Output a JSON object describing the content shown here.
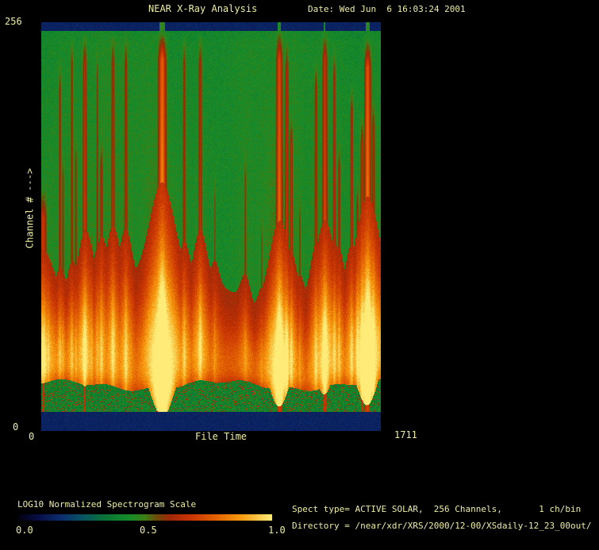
{
  "chart_data": {
    "type": "heatmap",
    "title": "NEAR X-Ray Analysis",
    "subtitle": "Date: Wed Jun  6 16:03:24 2001",
    "xlabel": "File Time",
    "ylabel": "Channel # --->",
    "x_axis": {
      "label": "File Time",
      "min_label": "0",
      "max_label": "1711",
      "range": [
        0,
        1711
      ]
    },
    "y_axis": {
      "label": "Channel # --->",
      "min_label": "0",
      "max_label": "256",
      "range": [
        0,
        256
      ]
    },
    "colorbar": {
      "label": "LOG10 Normalized Spectrogram Scale",
      "ticks": [
        "0.0",
        "0.5",
        "1.0"
      ],
      "range": [
        0.0,
        1.0
      ]
    },
    "info_lines": [
      "Spect type= ACTIVE SOLAR,  256 Channels,       1 ch/bin",
      "Directory = /near/xdr/XRS/2000/12-00/XSdaily-12_23_00out/"
    ],
    "palette_stops": [
      [
        0.0,
        2,
        2,
        12
      ],
      [
        0.08,
        8,
        14,
        70
      ],
      [
        0.17,
        12,
        45,
        110
      ],
      [
        0.26,
        8,
        85,
        95
      ],
      [
        0.34,
        10,
        115,
        55
      ],
      [
        0.44,
        22,
        140,
        40
      ],
      [
        0.5,
        60,
        128,
        22
      ],
      [
        0.55,
        112,
        72,
        10
      ],
      [
        0.6,
        160,
        40,
        8
      ],
      [
        0.68,
        200,
        52,
        2
      ],
      [
        0.78,
        226,
        98,
        0
      ],
      [
        0.88,
        248,
        156,
        16
      ],
      [
        1.0,
        255,
        236,
        120
      ]
    ],
    "spectrogram": {
      "background_level": 0.44,
      "band_level": 0.14,
      "top_band_frac": 0.0195,
      "bottom_band_start_frac": 0.9515,
      "green_band_start_frac": 0.887,
      "red_top_base_frac": 0.66,
      "flare_streaks": [
        {
          "x": 0.004,
          "i": 0.55,
          "w": 3.0,
          "top": 0.4
        },
        {
          "x": 0.02,
          "i": 0.3,
          "w": 1.2,
          "top": 0.55
        },
        {
          "x": 0.054,
          "i": 0.38,
          "w": 1.3,
          "top": 0.08
        },
        {
          "x": 0.063,
          "i": 0.3,
          "w": 1.0,
          "top": 0.3
        },
        {
          "x": 0.089,
          "i": 0.38,
          "w": 1.3,
          "top": 0.02
        },
        {
          "x": 0.101,
          "i": 0.32,
          "w": 1.0,
          "top": 0.26
        },
        {
          "x": 0.127,
          "i": 0.58,
          "w": 1.8,
          "top": 0.02
        },
        {
          "x": 0.148,
          "i": 0.28,
          "w": 1.0,
          "top": 0.5
        },
        {
          "x": 0.164,
          "i": 0.33,
          "w": 1.1,
          "top": 0.05
        },
        {
          "x": 0.176,
          "i": 0.42,
          "w": 1.4,
          "top": 0.28
        },
        {
          "x": 0.21,
          "i": 0.48,
          "w": 1.6,
          "top": 0.02
        },
        {
          "x": 0.248,
          "i": 0.46,
          "w": 1.5,
          "top": 0.02
        },
        {
          "x": 0.355,
          "i": 1.0,
          "w": 3.2,
          "top": 0.01
        },
        {
          "x": 0.42,
          "i": 0.42,
          "w": 1.4,
          "top": 0.02
        },
        {
          "x": 0.467,
          "i": 0.5,
          "w": 1.6,
          "top": 0.02
        },
        {
          "x": 0.51,
          "i": 0.22,
          "w": 1.0,
          "top": 0.35
        },
        {
          "x": 0.6,
          "i": 0.26,
          "w": 1.2,
          "top": 0.3
        },
        {
          "x": 0.648,
          "i": 0.22,
          "w": 1.0,
          "top": 0.45
        },
        {
          "x": 0.7,
          "i": 0.85,
          "w": 2.6,
          "top": 0.01
        },
        {
          "x": 0.722,
          "i": 0.55,
          "w": 1.6,
          "top": 0.04
        },
        {
          "x": 0.735,
          "i": 0.5,
          "w": 1.4,
          "top": 0.22
        },
        {
          "x": 0.76,
          "i": 0.25,
          "w": 1.0,
          "top": 0.4
        },
        {
          "x": 0.808,
          "i": 0.46,
          "w": 1.4,
          "top": 0.08
        },
        {
          "x": 0.834,
          "i": 0.66,
          "w": 2.2,
          "top": 0.01
        },
        {
          "x": 0.862,
          "i": 0.46,
          "w": 1.4,
          "top": 0.05
        },
        {
          "x": 0.876,
          "i": 0.4,
          "w": 1.2,
          "top": 0.28
        },
        {
          "x": 0.913,
          "i": 0.46,
          "w": 1.4,
          "top": 0.14
        },
        {
          "x": 0.93,
          "i": 0.42,
          "w": 1.2,
          "top": 0.38
        },
        {
          "x": 0.944,
          "i": 0.52,
          "w": 1.5,
          "top": 0.22
        },
        {
          "x": 0.96,
          "i": 0.92,
          "w": 2.8,
          "top": 0.03
        },
        {
          "x": 0.977,
          "i": 0.46,
          "w": 1.4,
          "top": 0.18
        }
      ]
    }
  }
}
